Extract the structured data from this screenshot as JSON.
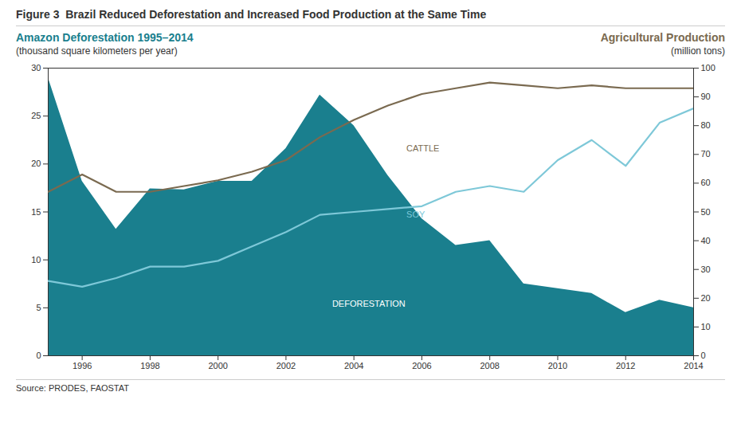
{
  "chart_data": {
    "type": "line",
    "title": "Figure 3  Brazil Reduced Deforestation and Increased Food Production at the Same Time",
    "ylabel": "Amazon Deforestation 1995–2014",
    "ylabel_note": "(thousand square kilometers per year)",
    "y2label": "Agricultural Production",
    "y2label_note": "(million tons)",
    "source": "Source: PRODES, FAOSTAT",
    "x": [
      1995,
      1996,
      1997,
      1998,
      1999,
      2000,
      2001,
      2002,
      2003,
      2004,
      2005,
      2006,
      2007,
      2008,
      2009,
      2010,
      2011,
      2012,
      2013,
      2014
    ],
    "series": [
      {
        "name": "DEFORESTATION",
        "type": "area",
        "color": "#1a7f8e",
        "values": [
          29.0,
          18.2,
          13.2,
          17.4,
          17.3,
          18.2,
          18.2,
          21.6,
          27.2,
          24.0,
          18.8,
          14.3,
          11.5,
          12.0,
          7.5,
          7.0,
          6.5,
          4.5,
          5.8,
          5.0
        ]
      },
      {
        "name": "CATTLE",
        "type": "line",
        "axis": "y2",
        "color": "#7a6a50",
        "values": [
          57,
          63,
          57,
          57,
          59,
          61,
          64,
          68,
          76,
          82,
          87,
          91,
          93,
          95,
          94,
          93,
          94,
          93,
          93,
          93
        ]
      },
      {
        "name": "SOY",
        "type": "line",
        "axis": "y2",
        "color": "#7ec8d8",
        "values": [
          26,
          24,
          27,
          31,
          31,
          33,
          38,
          43,
          49,
          50,
          51,
          52,
          57,
          59,
          57,
          68,
          75,
          66,
          81,
          86
        ]
      }
    ],
    "xlim": [
      1995,
      2014
    ],
    "xticks": [
      1996,
      1998,
      2000,
      2002,
      2004,
      2006,
      2008,
      2010,
      2012,
      2014
    ],
    "ylim": [
      0,
      30
    ],
    "yticks": [
      0,
      5,
      10,
      15,
      20,
      25,
      30
    ],
    "y2lim": [
      0,
      100
    ],
    "y2ticks": [
      0,
      10,
      20,
      30,
      40,
      50,
      60,
      70,
      80,
      90,
      100
    ],
    "grid": false
  }
}
